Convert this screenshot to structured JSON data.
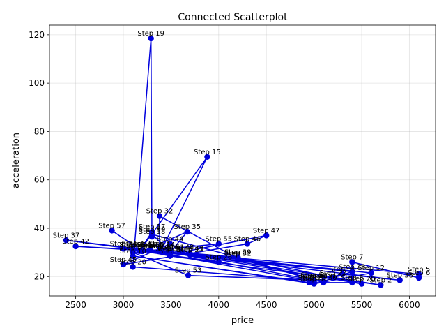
{
  "chart_data": {
    "type": "scatter",
    "connected": true,
    "title": "Connected Scatterplot",
    "xlabel": "price",
    "ylabel": "acceleration",
    "xlim": [
      2225,
      6275
    ],
    "ylim": [
      12,
      124
    ],
    "xticks": [
      2500,
      3000,
      3500,
      4000,
      4500,
      5000,
      5500,
      6000
    ],
    "yticks": [
      20,
      40,
      60,
      80,
      100,
      120
    ],
    "grid": true,
    "color": "#0000dd",
    "points": [
      {
        "label": "Step 1",
        "x": 3380,
        "y": 31.5
      },
      {
        "label": "Step 2",
        "x": 5700,
        "y": 16.5
      },
      {
        "label": "Step 3",
        "x": 3490,
        "y": 28.5
      },
      {
        "label": "Step 4",
        "x": 3100,
        "y": 31.5
      },
      {
        "label": "Step 5",
        "x": 6100,
        "y": 21.0
      },
      {
        "label": "Step 6",
        "x": 6100,
        "y": 19.5
      },
      {
        "label": "Step 7",
        "x": 5400,
        "y": 26.0
      },
      {
        "label": "Step 8",
        "x": 5400,
        "y": 17.5
      },
      {
        "label": "Step 9",
        "x": 4950,
        "y": 17.5
      },
      {
        "label": "Step 10",
        "x": 3100,
        "y": 28.5
      },
      {
        "label": "Step 11",
        "x": 5000,
        "y": 17.0
      },
      {
        "label": "Step 12",
        "x": 5600,
        "y": 21.5
      },
      {
        "label": "Step 13",
        "x": 3280,
        "y": 31.0
      },
      {
        "label": "Step 14",
        "x": 3400,
        "y": 31.0
      },
      {
        "label": "Step 15",
        "x": 3880,
        "y": 69.5
      },
      {
        "label": "Step 16",
        "x": 3170,
        "y": 30.5
      },
      {
        "label": "Step 17",
        "x": 3300,
        "y": 38.5
      },
      {
        "label": "Step 18",
        "x": 3300,
        "y": 36.5
      },
      {
        "label": "Step 19",
        "x": 3290,
        "y": 118.5
      },
      {
        "label": "Step 20",
        "x": 3100,
        "y": 24.0
      },
      {
        "label": "Step 21",
        "x": 5100,
        "y": 18.0
      },
      {
        "label": "Step 22",
        "x": 5200,
        "y": 19.5
      },
      {
        "label": "Step 23",
        "x": 5400,
        "y": 22.0
      },
      {
        "label": "Step 24",
        "x": 3000,
        "y": 31.5
      },
      {
        "label": "Step 25",
        "x": 3100,
        "y": 31.0
      },
      {
        "label": "Step 26",
        "x": 4000,
        "y": 26.0
      },
      {
        "label": "Step 27",
        "x": 3700,
        "y": 29.0
      },
      {
        "label": "Step 28",
        "x": 5500,
        "y": 17.0
      },
      {
        "label": "Step 29",
        "x": 4200,
        "y": 28.0
      },
      {
        "label": "Step 30",
        "x": 5100,
        "y": 17.5
      },
      {
        "label": "Step 31",
        "x": 4200,
        "y": 27.5
      },
      {
        "label": "Step 32",
        "x": 3380,
        "y": 45.0
      },
      {
        "label": "Step 33",
        "x": 3380,
        "y": 30.5
      },
      {
        "label": "Step 34",
        "x": 3200,
        "y": 30.5
      },
      {
        "label": "Step 35",
        "x": 3670,
        "y": 38.5
      },
      {
        "label": "Step 36",
        "x": 3480,
        "y": 29.5
      },
      {
        "label": "Step 37",
        "x": 2400,
        "y": 35.0
      },
      {
        "label": "Step 38",
        "x": 5900,
        "y": 18.5
      },
      {
        "label": "Step 39",
        "x": 5300,
        "y": 21.0
      },
      {
        "label": "Step 40",
        "x": 5000,
        "y": 18.0
      },
      {
        "label": "Step 41",
        "x": 3200,
        "y": 31.0
      },
      {
        "label": "Step 42",
        "x": 2500,
        "y": 32.5
      },
      {
        "label": "Step 43",
        "x": 3700,
        "y": 29.5
      },
      {
        "label": "Step 44",
        "x": 3490,
        "y": 33.5
      },
      {
        "label": "Step 45",
        "x": 3000,
        "y": 25.0
      },
      {
        "label": "Step 46",
        "x": 4300,
        "y": 33.5
      },
      {
        "label": "Step 47",
        "x": 4500,
        "y": 37.0
      },
      {
        "label": "Step 48",
        "x": 3600,
        "y": 30.0
      },
      {
        "label": "Step 49",
        "x": 4200,
        "y": 28.0
      },
      {
        "label": "Step 50",
        "x": 3300,
        "y": 37.5
      },
      {
        "label": "Step 51",
        "x": 3500,
        "y": 30.0
      },
      {
        "label": "Step 52",
        "x": 5000,
        "y": 18.5
      },
      {
        "label": "Step 53",
        "x": 3680,
        "y": 20.5
      },
      {
        "label": "Step 54",
        "x": 3100,
        "y": 30.0
      },
      {
        "label": "Step 55",
        "x": 4000,
        "y": 33.5
      },
      {
        "label": "Step 56",
        "x": 3200,
        "y": 30.5
      },
      {
        "label": "Step 57",
        "x": 2880,
        "y": 39.0
      }
    ]
  }
}
